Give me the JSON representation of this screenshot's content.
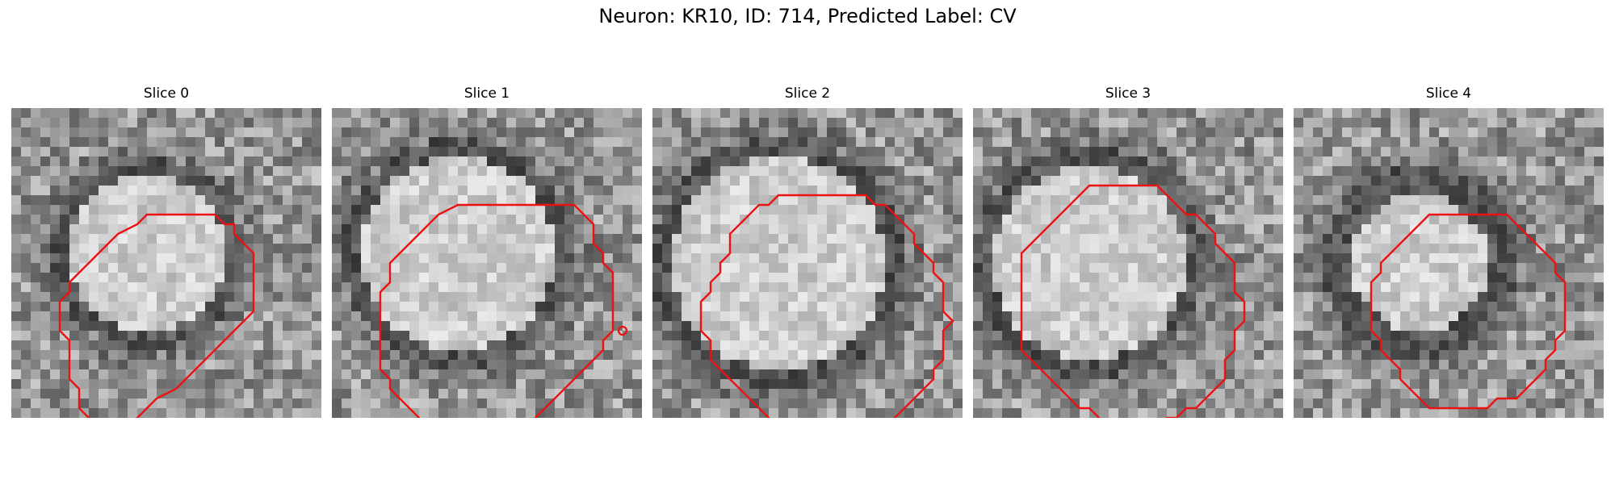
{
  "figure": {
    "title": "Neuron: KR10, ID: 714, Predicted Label: CV"
  },
  "contour_color": "#ee1111",
  "panels": [
    {
      "title": "Slice 0",
      "contour": [
        [
          12,
          6
        ],
        [
          16,
          6
        ],
        [
          17,
          7
        ],
        [
          18,
          7
        ],
        [
          18,
          8
        ],
        [
          19,
          9
        ],
        [
          20,
          10
        ],
        [
          20,
          16
        ],
        [
          19,
          17
        ],
        [
          18,
          18
        ],
        [
          17,
          19
        ],
        [
          16,
          20
        ],
        [
          15,
          21
        ],
        [
          14,
          22
        ],
        [
          13,
          23
        ],
        [
          12,
          24
        ],
        [
          10,
          25
        ],
        [
          9,
          26
        ],
        [
          8,
          27
        ],
        [
          7,
          28
        ],
        [
          5,
          29
        ],
        [
          4,
          28
        ],
        [
          3,
          27
        ],
        [
          2,
          26
        ],
        [
          2,
          24
        ],
        [
          1,
          23
        ],
        [
          1,
          19
        ],
        [
          0,
          18
        ],
        [
          0,
          15
        ],
        [
          1,
          14
        ],
        [
          1,
          13
        ],
        [
          2,
          12
        ],
        [
          3,
          11
        ],
        [
          4,
          10
        ],
        [
          5,
          9
        ],
        [
          6,
          8
        ],
        [
          8,
          7
        ],
        [
          9,
          6
        ]
      ],
      "bright_center": [
        14,
        15
      ],
      "bright_radius": 8,
      "dark_ring_radius": 10
    },
    {
      "title": "Slice 1",
      "contour": [
        [
          9,
          5
        ],
        [
          20,
          5
        ],
        [
          21,
          6
        ],
        [
          22,
          7
        ],
        [
          22,
          9
        ],
        [
          23,
          10
        ],
        [
          23,
          11
        ],
        [
          24,
          12
        ],
        [
          24,
          18
        ],
        [
          23,
          19
        ],
        [
          23,
          20
        ],
        [
          22,
          21
        ],
        [
          21,
          22
        ],
        [
          20,
          23
        ],
        [
          19,
          24
        ],
        [
          18,
          25
        ],
        [
          17,
          26
        ],
        [
          16,
          27
        ],
        [
          15,
          28
        ],
        [
          14,
          29
        ],
        [
          13,
          30
        ],
        [
          8,
          30
        ],
        [
          7,
          29
        ],
        [
          6,
          29
        ],
        [
          5,
          28
        ],
        [
          4,
          27
        ],
        [
          3,
          26
        ],
        [
          2,
          25
        ],
        [
          1,
          24
        ],
        [
          1,
          23
        ],
        [
          0,
          22
        ],
        [
          0,
          14
        ],
        [
          1,
          13
        ],
        [
          1,
          11
        ],
        [
          2,
          10
        ],
        [
          3,
          9
        ],
        [
          4,
          8
        ],
        [
          5,
          7
        ],
        [
          6,
          6
        ],
        [
          8,
          5
        ]
      ],
      "marker": [
        25,
        18
      ],
      "bright_center": [
        13,
        15
      ],
      "bright_radius": 10,
      "dark_ring_radius": 12
    },
    {
      "title": "Slice 2",
      "contour": [
        [
          10,
          4
        ],
        [
          17,
          4
        ],
        [
          18,
          5
        ],
        [
          19,
          5
        ],
        [
          20,
          6
        ],
        [
          21,
          7
        ],
        [
          22,
          8
        ],
        [
          22,
          9
        ],
        [
          23,
          10
        ],
        [
          24,
          11
        ],
        [
          24,
          12
        ],
        [
          25,
          13
        ],
        [
          25,
          16
        ],
        [
          26,
          17
        ],
        [
          25,
          18
        ],
        [
          25,
          21
        ],
        [
          24,
          22
        ],
        [
          24,
          23
        ],
        [
          23,
          24
        ],
        [
          22,
          25
        ],
        [
          21,
          26
        ],
        [
          20,
          27
        ],
        [
          19,
          28
        ],
        [
          18,
          29
        ],
        [
          17,
          30
        ],
        [
          15,
          30
        ],
        [
          14,
          31
        ],
        [
          13,
          30
        ],
        [
          12,
          30
        ],
        [
          11,
          29
        ],
        [
          10,
          29
        ],
        [
          9,
          28
        ],
        [
          8,
          28
        ],
        [
          7,
          27
        ],
        [
          6,
          26
        ],
        [
          5,
          25
        ],
        [
          4,
          24
        ],
        [
          3,
          23
        ],
        [
          2,
          22
        ],
        [
          1,
          21
        ],
        [
          1,
          19
        ],
        [
          0,
          18
        ],
        [
          0,
          15
        ],
        [
          1,
          14
        ],
        [
          1,
          13
        ],
        [
          2,
          12
        ],
        [
          2,
          11
        ],
        [
          3,
          10
        ],
        [
          3,
          8
        ],
        [
          4,
          7
        ],
        [
          5,
          6
        ],
        [
          6,
          5
        ],
        [
          7,
          5
        ],
        [
          8,
          4
        ]
      ],
      "bright_center": [
        13,
        16
      ],
      "bright_radius": 11,
      "dark_ring_radius": 13
    },
    {
      "title": "Slice 3",
      "contour": [
        [
          9,
          3
        ],
        [
          14,
          3
        ],
        [
          15,
          4
        ],
        [
          16,
          5
        ],
        [
          17,
          6
        ],
        [
          18,
          6
        ],
        [
          19,
          7
        ],
        [
          20,
          8
        ],
        [
          20,
          9
        ],
        [
          21,
          10
        ],
        [
          22,
          11
        ],
        [
          22,
          14
        ],
        [
          23,
          15
        ],
        [
          23,
          17
        ],
        [
          22,
          18
        ],
        [
          22,
          20
        ],
        [
          21,
          21
        ],
        [
          21,
          23
        ],
        [
          20,
          24
        ],
        [
          19,
          25
        ],
        [
          18,
          26
        ],
        [
          17,
          26
        ],
        [
          16,
          27
        ],
        [
          15,
          27
        ],
        [
          14,
          28
        ],
        [
          13,
          29
        ],
        [
          12,
          28
        ],
        [
          9,
          28
        ],
        [
          8,
          27
        ],
        [
          7,
          26
        ],
        [
          6,
          26
        ],
        [
          5,
          25
        ],
        [
          4,
          24
        ],
        [
          3,
          23
        ],
        [
          2,
          22
        ],
        [
          1,
          21
        ],
        [
          0,
          20
        ],
        [
          0,
          13
        ],
        [
          0,
          10
        ],
        [
          1,
          9
        ],
        [
          2,
          8
        ],
        [
          3,
          7
        ],
        [
          4,
          6
        ],
        [
          5,
          5
        ],
        [
          6,
          4
        ],
        [
          7,
          3
        ]
      ],
      "bright_center": [
        12,
        16
      ],
      "bright_radius": 10,
      "dark_ring_radius": 12
    },
    {
      "title": "Slice 4",
      "contour": [
        [
          9,
          6
        ],
        [
          17,
          6
        ],
        [
          18,
          7
        ],
        [
          19,
          8
        ],
        [
          20,
          9
        ],
        [
          21,
          10
        ],
        [
          22,
          11
        ],
        [
          22,
          12
        ],
        [
          23,
          13
        ],
        [
          23,
          18
        ],
        [
          22,
          19
        ],
        [
          22,
          20
        ],
        [
          21,
          21
        ],
        [
          21,
          22
        ],
        [
          20,
          23
        ],
        [
          19,
          24
        ],
        [
          18,
          25
        ],
        [
          16,
          25
        ],
        [
          15,
          26
        ],
        [
          9,
          26
        ],
        [
          8,
          25
        ],
        [
          7,
          24
        ],
        [
          6,
          23
        ],
        [
          6,
          22
        ],
        [
          5,
          21
        ],
        [
          4,
          20
        ],
        [
          4,
          19
        ],
        [
          3,
          18
        ],
        [
          3,
          13
        ],
        [
          4,
          12
        ],
        [
          4,
          11
        ],
        [
          5,
          10
        ],
        [
          6,
          9
        ],
        [
          7,
          8
        ],
        [
          8,
          7
        ]
      ],
      "bright_center": [
        13,
        16
      ],
      "bright_radius": 7,
      "dark_ring_radius": 10
    }
  ]
}
